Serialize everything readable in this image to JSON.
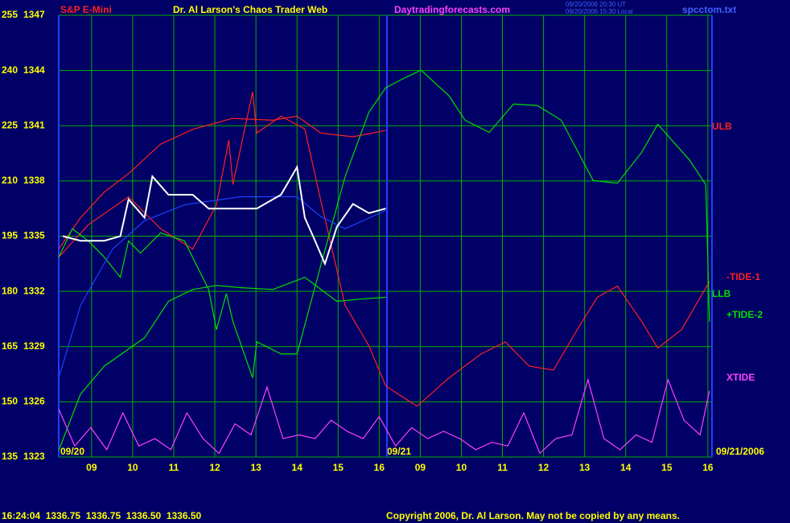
{
  "chart_data": {
    "type": "line",
    "title": "Dr. Al Larson's Chaos Trader Web",
    "site": "Daytradingforecasts.com",
    "timestamps": [
      "09/20/2006 20:30 UT",
      "09/20/2006 15:30 Local"
    ],
    "source_file": "spcctom.txt",
    "date_labels": [
      "09/20",
      "09/21",
      "09/21/2006"
    ],
    "status": "16:24:04  1336.75  1336.75  1336.50  1336.50",
    "copyright": "Copyright 2006, Dr. Al Larson. May not be copied by any means.",
    "xlim": [
      0,
      15.9
    ],
    "xticks": [
      {
        "value": 0.8,
        "label": "09"
      },
      {
        "value": 1.8,
        "label": "10"
      },
      {
        "value": 2.8,
        "label": "11"
      },
      {
        "value": 3.8,
        "label": "12"
      },
      {
        "value": 4.8,
        "label": "13"
      },
      {
        "value": 5.8,
        "label": "14"
      },
      {
        "value": 6.8,
        "label": "15"
      },
      {
        "value": 7.8,
        "label": "16"
      },
      {
        "value": 8.8,
        "label": "09"
      },
      {
        "value": 9.8,
        "label": "10"
      },
      {
        "value": 10.8,
        "label": "11"
      },
      {
        "value": 11.8,
        "label": "12"
      },
      {
        "value": 12.8,
        "label": "13"
      },
      {
        "value": 13.8,
        "label": "14"
      },
      {
        "value": 14.8,
        "label": "15"
      },
      {
        "value": 15.8,
        "label": "16"
      }
    ],
    "ylim": [
      135,
      255
    ],
    "yticks": [
      135,
      150,
      165,
      180,
      195,
      210,
      225,
      240,
      255
    ],
    "y2lim": [
      1323,
      1347
    ],
    "y2ticks": [
      1323,
      1326,
      1329,
      1332,
      1335,
      1338,
      1341,
      1344,
      1347
    ],
    "grid": true,
    "series": [
      {
        "name": "ULB",
        "color": "#ff2020",
        "x": [
          0,
          0.53,
          1.11,
          1.7,
          2.48,
          3.26,
          4.23,
          5.21,
          5.8,
          6.38,
          7.16,
          7.96
        ],
        "values": [
          191.5,
          200,
          207,
          212,
          220,
          224,
          227,
          226.5,
          227.6,
          223,
          222,
          223.7
        ]
      },
      {
        "name": "-TIDE-1",
        "color": "#ff2020",
        "x": [
          0,
          0.72,
          1.7,
          2.48,
          3.26,
          3.84,
          4.14,
          4.24,
          4.72,
          4.82,
          5.41,
          5.99,
          6.38,
          6.97,
          7.55,
          7.96,
          8.72,
          9.5,
          10.28,
          10.87,
          11.45,
          12.04,
          12.62,
          13.11,
          13.6,
          14.19,
          14.58,
          15.16,
          15.84
        ],
        "values": [
          189.3,
          198.1,
          205.7,
          197,
          191.5,
          203.5,
          221.1,
          209,
          234.2,
          223,
          227.6,
          224.1,
          204.6,
          176.2,
          165.2,
          154.3,
          148.8,
          156.5,
          163,
          166.3,
          159.7,
          158.6,
          169.6,
          178.4,
          181.4,
          171.8,
          164.6,
          169.6,
          182.7
        ]
      },
      {
        "name": "LLB",
        "color": "#00e000",
        "x": [
          0,
          0.53,
          1.11,
          2.09,
          2.67,
          3.26,
          3.84,
          4.43,
          5.21,
          5.99,
          6.77,
          7.36,
          7.96
        ],
        "values": [
          136.8,
          152.1,
          159.7,
          167.4,
          177.3,
          180.5,
          181.6,
          181,
          180.5,
          183.8,
          177.3,
          177.9,
          178.4
        ]
      },
      {
        "name": "+TIDE-2",
        "color": "#00e000",
        "x": [
          0,
          0.33,
          0.72,
          1.11,
          1.5,
          1.7,
          1.99,
          2.48,
          3.06,
          3.65,
          3.84,
          4.08,
          4.24,
          4.72,
          4.82,
          5.41,
          5.8,
          6.38,
          6.97,
          7.55,
          7.96,
          8.33,
          8.82,
          9.5,
          9.89,
          10.48,
          11.07,
          11.65,
          12.23,
          13.01,
          13.6,
          14.19,
          14.58,
          15.36,
          15.75,
          15.84
        ],
        "values": [
          189.3,
          197,
          193.7,
          189.3,
          183.8,
          193.7,
          190.4,
          195.9,
          193.7,
          180.5,
          169.6,
          179.4,
          171.8,
          156.5,
          166.3,
          163,
          163,
          187.1,
          211.2,
          228.7,
          235.3,
          237.5,
          240.1,
          233.1,
          226.5,
          223.2,
          230.9,
          230.5,
          226.5,
          210.1,
          209.4,
          217.8,
          225.4,
          215.6,
          209,
          171.8
        ]
      },
      {
        "color": "#2040ff",
        "x": [
          0,
          0.53,
          1.31,
          2.09,
          3.06,
          4.43,
          5.8,
          6.38,
          6.97,
          7.96
        ],
        "values": [
          156.5,
          176.2,
          191.5,
          199.2,
          203.5,
          205.7,
          205.7,
          200.3,
          197,
          202
        ]
      },
      {
        "name": "XTIDE",
        "color": "#ff40ff",
        "x": [
          0,
          0.39,
          0.78,
          1.17,
          1.56,
          1.95,
          2.34,
          2.73,
          3.12,
          3.51,
          3.9,
          4.29,
          4.68,
          5.07,
          5.46,
          5.85,
          6.24,
          6.63,
          7.02,
          7.41,
          7.8,
          8.2,
          8.59,
          8.98,
          9.37,
          9.76,
          10.15,
          10.54,
          10.93,
          11.32,
          11.71,
          12.1,
          12.49,
          12.88,
          13.27,
          13.66,
          14.05,
          14.44,
          14.83,
          15.22,
          15.61,
          15.84
        ],
        "values": [
          148,
          138,
          143,
          137,
          147,
          138,
          140,
          137,
          147,
          140,
          136,
          144,
          141,
          154,
          140,
          141,
          140,
          145,
          142,
          140,
          146,
          138,
          143,
          140,
          142,
          140,
          137,
          139,
          138,
          147,
          136,
          140,
          141,
          156,
          140,
          137,
          141,
          139,
          156,
          145,
          141,
          153
        ]
      },
      {
        "name": "S&P E-Mini",
        "color": "#ffffff",
        "axis": "y2",
        "x": [
          0.1,
          0.53,
          1.11,
          1.5,
          1.7,
          2.09,
          2.28,
          2.67,
          3.26,
          3.65,
          4.23,
          4.82,
          5.41,
          5.8,
          5.99,
          6.19,
          6.48,
          6.77,
          7.16,
          7.55,
          7.96
        ],
        "values": [
          1335,
          1334.75,
          1334.75,
          1335,
          1337,
          1336,
          1338.25,
          1337.25,
          1337.25,
          1336.5,
          1336.5,
          1336.5,
          1337.25,
          1338.75,
          1336,
          1335,
          1333.5,
          1335.5,
          1336.75,
          1336.25,
          1336.5
        ]
      }
    ]
  }
}
